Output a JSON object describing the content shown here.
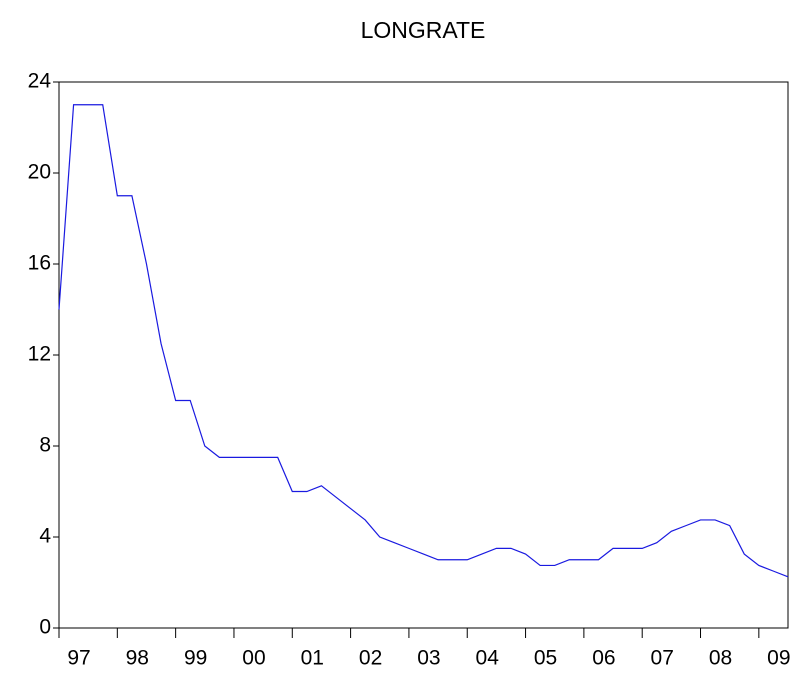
{
  "chart_data": {
    "type": "line",
    "title": "LONGRATE",
    "categories": [
      "97",
      null,
      null,
      null,
      "98",
      null,
      null,
      null,
      "99",
      null,
      null,
      null,
      "00",
      null,
      null,
      null,
      "01",
      null,
      null,
      null,
      "02",
      null,
      null,
      null,
      "03",
      null,
      null,
      null,
      "04",
      null,
      null,
      null,
      "05",
      null,
      null,
      null,
      "06",
      null,
      null,
      null,
      "07",
      null,
      null,
      null,
      "08",
      null,
      null,
      null,
      "09",
      null,
      null
    ],
    "series": [
      {
        "name": "LONGRATE",
        "color": "#1a1ae0",
        "values": [
          14,
          23,
          23,
          23,
          19,
          19,
          16,
          12.5,
          10,
          10,
          8,
          7.5,
          7.5,
          7.5,
          7.5,
          7.5,
          6,
          6,
          6.25,
          5.75,
          5.25,
          4.75,
          4,
          3.75,
          3.5,
          3.25,
          3,
          3,
          3,
          3.25,
          3.5,
          3.5,
          3.25,
          2.75,
          2.75,
          3,
          3,
          3,
          3.5,
          3.5,
          3.5,
          3.75,
          4.25,
          4.5,
          4.75,
          4.75,
          4.5,
          3.25,
          2.75,
          2.5,
          2.25
        ]
      }
    ],
    "ylim": [
      0,
      24
    ],
    "yticks": [
      0,
      4,
      8,
      12,
      16,
      20,
      24
    ]
  }
}
